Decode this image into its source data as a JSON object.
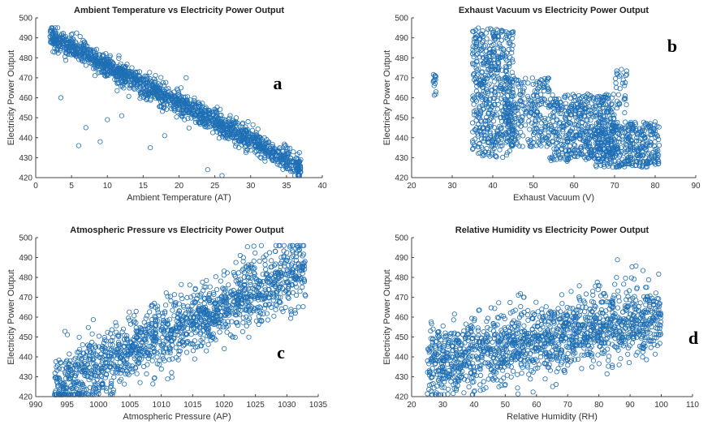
{
  "marker_color": "#1f6fb5",
  "chart_data": [
    {
      "type": "scatter",
      "panel_letter": "a",
      "title": "Ambient Temperature vs Electricity Power Output",
      "xlabel": "Ambient Temperature (AT)",
      "ylabel": "Electricity Power Output",
      "xlim": [
        0,
        40
      ],
      "ylim": [
        420,
        500
      ],
      "xticks": [
        0,
        5,
        10,
        15,
        20,
        25,
        30,
        35,
        40
      ],
      "yticks": [
        420,
        430,
        440,
        450,
        460,
        470,
        480,
        490,
        500
      ],
      "marker": "circle",
      "trend": "strong negative linear",
      "x_range": [
        2,
        37
      ],
      "y_range": [
        421,
        495
      ],
      "relation": {
        "x1": 3,
        "y1": 489,
        "x2": 33,
        "y2": 433,
        "spread": 5
      },
      "outliers": [
        [
          3.5,
          460
        ],
        [
          7,
          445
        ],
        [
          9,
          438
        ],
        [
          6,
          436
        ],
        [
          10,
          449
        ],
        [
          12,
          451
        ],
        [
          16,
          435
        ],
        [
          18,
          441
        ],
        [
          21,
          470
        ],
        [
          24,
          424
        ],
        [
          26,
          421
        ],
        [
          35,
          430
        ],
        [
          37,
          429
        ]
      ]
    },
    {
      "type": "scatter",
      "panel_letter": "b",
      "title": "Exhaust Vacuum vs Electricity Power Output",
      "xlabel": "Exhaust Vacuum (V)",
      "ylabel": "Electricity Power Output",
      "xlim": [
        20,
        90
      ],
      "ylim": [
        420,
        500
      ],
      "xticks": [
        20,
        30,
        40,
        50,
        60,
        70,
        80,
        90
      ],
      "yticks": [
        420,
        430,
        440,
        450,
        460,
        470,
        480,
        490,
        500
      ],
      "marker": "circle",
      "trend": "negative, clustered by vacuum level",
      "x_range": [
        25,
        81
      ],
      "y_range": [
        421,
        495
      ],
      "clusters": [
        {
          "x": [
            25,
            26
          ],
          "y": [
            461,
            472
          ],
          "n": 14
        },
        {
          "x": [
            35,
            45
          ],
          "y": [
            430,
            495
          ],
          "n": 520
        },
        {
          "x": [
            43,
            54
          ],
          "y": [
            435,
            470
          ],
          "n": 260
        },
        {
          "x": [
            54,
            70
          ],
          "y": [
            428,
            462
          ],
          "n": 520
        },
        {
          "x": [
            70,
            73
          ],
          "y": [
            450,
            475
          ],
          "n": 30
        },
        {
          "x": [
            65,
            81
          ],
          "y": [
            425,
            448
          ],
          "n": 380
        }
      ]
    },
    {
      "type": "scatter",
      "panel_letter": "c",
      "title": "Atmospheric Pressure vs Electricity Power Output",
      "xlabel": "Atmospheric Pressure (AP)",
      "ylabel": "Electricity Power Output",
      "xlim": [
        990,
        1035
      ],
      "ylim": [
        420,
        500
      ],
      "xticks": [
        990,
        995,
        1000,
        1005,
        1010,
        1015,
        1020,
        1025,
        1030,
        1035
      ],
      "yticks": [
        420,
        430,
        440,
        450,
        460,
        470,
        480,
        490,
        500
      ],
      "marker": "circle",
      "trend": "weak positive, wide spread",
      "x_range": [
        993,
        1033
      ],
      "y_range": [
        421,
        496
      ],
      "relation": {
        "x1": 1003,
        "y1": 440,
        "x2": 1023,
        "y2": 470,
        "spread": 14
      }
    },
    {
      "type": "scatter",
      "panel_letter": "d",
      "title": "Relative Humidity vs Electricity Power Output",
      "xlabel": "Relative Humidity (RH)",
      "ylabel": "Electricity Power Output",
      "xlim": [
        20,
        110
      ],
      "ylim": [
        420,
        500
      ],
      "xticks": [
        20,
        30,
        40,
        50,
        60,
        70,
        80,
        90,
        100,
        110
      ],
      "yticks": [
        420,
        430,
        440,
        450,
        460,
        470,
        480,
        490,
        500
      ],
      "marker": "circle",
      "trend": "weak positive, wide spread",
      "x_range": [
        25,
        100
      ],
      "y_range": [
        421,
        496
      ],
      "relation": {
        "x1": 35,
        "y1": 440,
        "x2": 95,
        "y2": 460,
        "spread": 15
      }
    }
  ]
}
